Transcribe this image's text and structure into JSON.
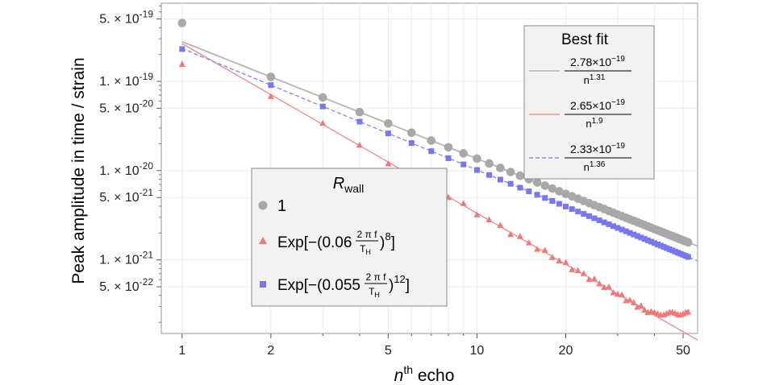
{
  "chart_data": {
    "type": "scatter",
    "xlabel": {
      "main": "n",
      "sup": "th",
      "rest": " echo"
    },
    "ylabel": "Peak amplitude in time / strain",
    "x_scale": "log",
    "y_scale": "log",
    "xlim": [
      0.85,
      56
    ],
    "ylim": [
      1.5e-22,
      7.5e-19
    ],
    "x_ticks": [
      {
        "value": 1,
        "label": "1"
      },
      {
        "value": 2,
        "label": "2"
      },
      {
        "value": 5,
        "label": "5"
      },
      {
        "value": 10,
        "label": "10"
      },
      {
        "value": 20,
        "label": "20"
      },
      {
        "value": 50,
        "label": "50"
      }
    ],
    "y_ticks": [
      {
        "value": 5e-19,
        "mant": "5.",
        "exp": "-19"
      },
      {
        "value": 1e-19,
        "mant": "1.",
        "exp": "-19"
      },
      {
        "value": 5e-20,
        "mant": "5.",
        "exp": "-20"
      },
      {
        "value": 1e-20,
        "mant": "1.",
        "exp": "-20"
      },
      {
        "value": 5e-21,
        "mant": "5.",
        "exp": "-21"
      },
      {
        "value": 1e-21,
        "mant": "1.",
        "exp": "-21"
      },
      {
        "value": 5e-22,
        "mant": "5.",
        "exp": "-22"
      }
    ],
    "series": [
      {
        "label": "1",
        "color": "#a8a8a8",
        "marker": "circle",
        "amp": 2.78e-19,
        "power": 1.31,
        "first": 4.5e-19,
        "noise": 0
      },
      {
        "label": "Exp[-(0.06 2πf/T_H)^8]",
        "color": "#f07878",
        "marker": "triangle",
        "amp": 2.65e-19,
        "power": 1.9,
        "first": 1.55e-19,
        "noise": 0.05,
        "floor": 2.5e-22
      },
      {
        "label": "Exp[-(0.055 2πf/T_H)^12]",
        "color": "#7777ee",
        "marker": "square",
        "amp": 2.33e-19,
        "power": 1.36,
        "first": 2.3e-19,
        "noise": 0
      }
    ],
    "fits": [
      {
        "amp": 2.78e-19,
        "power": 1.31,
        "color": "#b4b4b4",
        "dash": ""
      },
      {
        "amp": 2.65e-19,
        "power": 1.9,
        "color": "#f08080",
        "dash": ""
      },
      {
        "amp": 2.33e-19,
        "power": 1.36,
        "color": "#7a7af0",
        "dash": "5,3"
      }
    ],
    "n_points": 52
  },
  "legend_left": {
    "title": {
      "main": "R",
      "sub": "wall"
    },
    "items": [
      {
        "text": "1",
        "color": "#a8a8a8",
        "marker": "circle"
      },
      {
        "pre": "Exp[−(0.06",
        "frac_num": "2 π f",
        "frac_den": "T",
        "frac_den_sub": "H",
        "post": ")",
        "sup": "8",
        "end": "]",
        "color": "#f07878",
        "marker": "triangle"
      },
      {
        "pre": "Exp[−(0.055",
        "frac_num": "2 π f",
        "frac_den": "T",
        "frac_den_sub": "H",
        "post": ")",
        "sup": "12",
        "end": "]",
        "color": "#7777ee",
        "marker": "square"
      }
    ]
  },
  "legend_right": {
    "title": "Best fit",
    "items": [
      {
        "num": "2.78×10",
        "num_exp": "−19",
        "den": "n",
        "den_exp": "1.31",
        "color": "#b4b4b4",
        "dash": ""
      },
      {
        "num": "2.65×10",
        "num_exp": "−19",
        "den": "n",
        "den_exp": "1.9",
        "color": "#f08080",
        "dash": ""
      },
      {
        "num": "2.33×10",
        "num_exp": "−19",
        "den": "n",
        "den_exp": "1.36",
        "color": "#7a7af0",
        "dash": "5,3"
      }
    ]
  }
}
